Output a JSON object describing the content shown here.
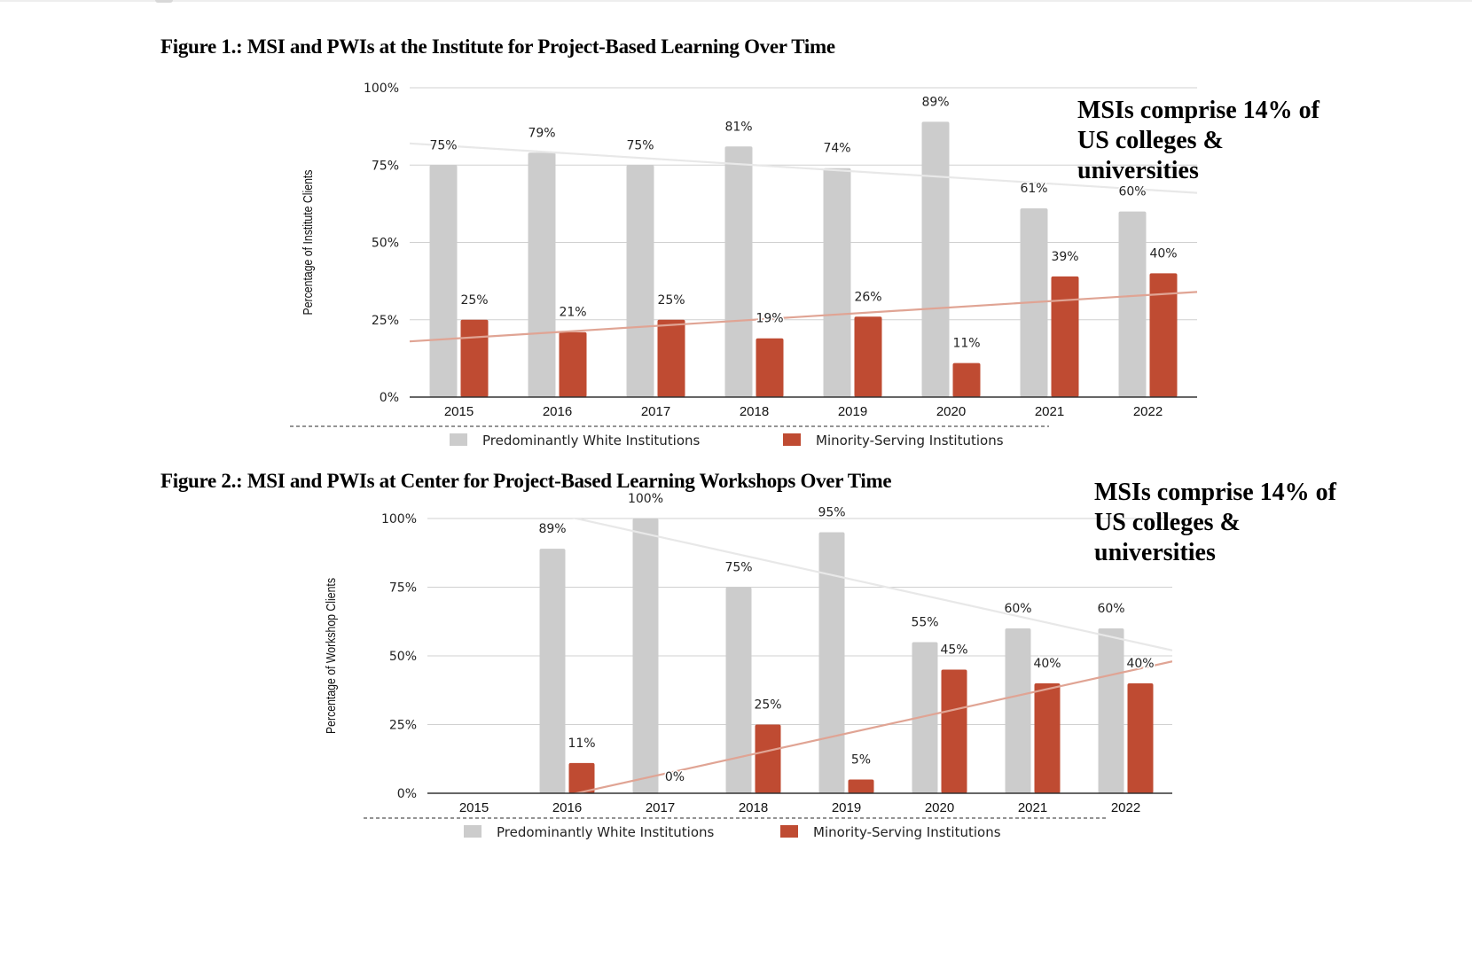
{
  "colors": {
    "pwi": "#cccccc",
    "msi": "#bf4b32",
    "pwi_trend": "#e8e8e8",
    "msi_trend": "#e0a494",
    "grid": "#d0d0d0",
    "axis": "#333333"
  },
  "figure1": {
    "title": "Figure 1.: MSI and PWIs at the Institute for Project-Based Learning Over Time",
    "annotation": [
      "MSIs comprise 14% of",
      "US colleges &",
      "universities"
    ]
  },
  "figure2": {
    "title": "Figure 2.: MSI and PWIs at Center for Project-Based Learning Workshops Over Time",
    "annotation": [
      "MSIs comprise 14% of",
      "US colleges &",
      "universities"
    ]
  },
  "chart_data": [
    {
      "type": "bar",
      "title": "Figure 1.: MSI and PWIs at the Institute for Project-Based Learning Over Time",
      "xlabel": "",
      "ylabel": "Percentage of Institute Clients",
      "ylim": [
        0,
        100
      ],
      "yticks": [
        "0%",
        "25%",
        "50%",
        "75%",
        "100%"
      ],
      "grid": true,
      "legend": "bottom",
      "categories": [
        "2015",
        "2016",
        "2017",
        "2018",
        "2019",
        "2020",
        "2021",
        "2022"
      ],
      "series": [
        {
          "name": "Predominantly White Institutions",
          "values": [
            75,
            79,
            75,
            81,
            74,
            89,
            61,
            60
          ],
          "labels": [
            "75%",
            "79%",
            "75%",
            "81%",
            "74%",
            "89%",
            "61%",
            "60%"
          ]
        },
        {
          "name": "Minority-Serving Institutions",
          "values": [
            25,
            21,
            25,
            19,
            26,
            11,
            39,
            40
          ],
          "labels": [
            "25%",
            "21%",
            "25%",
            "19%",
            "26%",
            "11%",
            "39%",
            "40%"
          ]
        }
      ],
      "trendlines": [
        {
          "series": "Predominantly White Institutions",
          "start": 82,
          "end": 66
        },
        {
          "series": "Minority-Serving Institutions",
          "start": 18,
          "end": 34
        }
      ],
      "annotation": "MSIs comprise 14% of US colleges & universities"
    },
    {
      "type": "bar",
      "title": "Figure 2.: MSI and PWIs at Center for Project-Based Learning Workshops Over Time",
      "xlabel": "",
      "ylabel": "Percentage of Workshop Clients",
      "ylim": [
        0,
        100
      ],
      "yticks": [
        "0%",
        "25%",
        "50%",
        "75%",
        "100%"
      ],
      "grid": true,
      "legend": "bottom",
      "categories": [
        "2015",
        "2016",
        "2017",
        "2018",
        "2019",
        "2020",
        "2021",
        "2022"
      ],
      "series": [
        {
          "name": "Predominantly White Institutions",
          "values": [
            null,
            89,
            100,
            75,
            95,
            55,
            60,
            60
          ],
          "labels": [
            "",
            "89%",
            "100%",
            "75%",
            "95%",
            "55%",
            "60%",
            "60%"
          ]
        },
        {
          "name": "Minority-Serving Institutions",
          "values": [
            null,
            11,
            0,
            25,
            5,
            45,
            40,
            40
          ],
          "labels": [
            "",
            "11%",
            "0%",
            "25%",
            "5%",
            "45%",
            "40%",
            "40%"
          ]
        }
      ],
      "trendlines": [
        {
          "series": "Predominantly White Institutions",
          "start": 112,
          "end": 52
        },
        {
          "series": "Minority-Serving Institutions",
          "start": -12,
          "end": 48
        }
      ],
      "annotation": "MSIs comprise 14% of US colleges & universities"
    }
  ]
}
